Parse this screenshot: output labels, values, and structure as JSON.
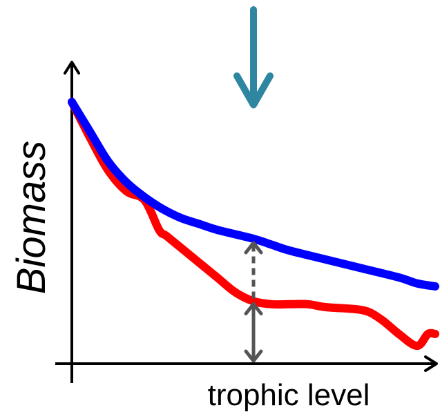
{
  "chart_data": {
    "type": "line",
    "title": "",
    "xlabel": "trophic level",
    "ylabel": "Biomass",
    "grid": false,
    "legend": "none",
    "xlim": [
      0,
      1
    ],
    "ylim": [
      0,
      1
    ],
    "series": [
      {
        "color": "#0000ff",
        "x": [
          0.0,
          0.05,
          0.1,
          0.15,
          0.2,
          0.25,
          0.3,
          0.35,
          0.4,
          0.5,
          0.55,
          0.6,
          0.7,
          0.8,
          0.9,
          0.95,
          1.0
        ],
        "y": [
          0.88,
          0.78,
          0.68,
          0.61,
          0.56,
          0.52,
          0.49,
          0.47,
          0.45,
          0.42,
          0.4,
          0.38,
          0.35,
          0.32,
          0.29,
          0.27,
          0.26
        ]
      },
      {
        "color": "#ff0000",
        "x": [
          0.0,
          0.05,
          0.1,
          0.15,
          0.2,
          0.24,
          0.26,
          0.3,
          0.35,
          0.4,
          0.45,
          0.5,
          0.55,
          0.6,
          0.65,
          0.7,
          0.8,
          0.85,
          0.9,
          0.95,
          0.98,
          1.0
        ],
        "y": [
          0.88,
          0.76,
          0.65,
          0.58,
          0.55,
          0.45,
          0.43,
          0.39,
          0.34,
          0.29,
          0.24,
          0.21,
          0.2,
          0.2,
          0.2,
          0.19,
          0.18,
          0.15,
          0.1,
          0.06,
          0.1,
          0.1
        ]
      }
    ],
    "arrow_down": {
      "x": 0.5,
      "color": "#2e86a0"
    },
    "gap_arrows": {
      "x": 0.5,
      "color": "#555555",
      "solid_from": 0.0,
      "solid_to": 0.21,
      "dashed_from": 0.21,
      "dashed_to": 0.42
    }
  }
}
